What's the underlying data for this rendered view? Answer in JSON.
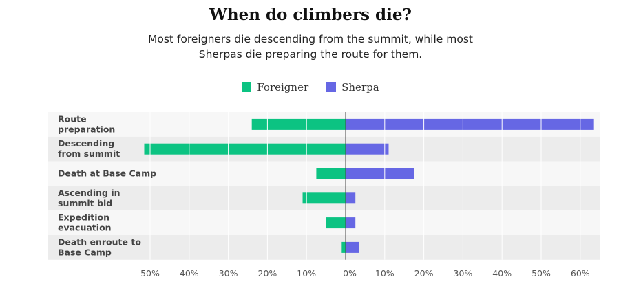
{
  "title": "When do climbers die?",
  "subtitle_line1": "Most foreigners die descending from the summit, while most",
  "subtitle_line2": "Sherpas die preparing the route for them.",
  "colors": {
    "foreigner": "#0cc382",
    "sherpa": "#6667e4",
    "row_light": "#f7f7f7",
    "row_dark": "#ececec"
  },
  "chart_data": {
    "type": "bar",
    "orientation": "horizontal-diverging",
    "title": "When do climbers die?",
    "categories": [
      [
        "Route",
        "preparation"
      ],
      [
        "Descending",
        "from summit"
      ],
      [
        "Death at Base Camp"
      ],
      [
        "Ascending in",
        "summit bid"
      ],
      [
        "Expedition",
        "evacuation"
      ],
      [
        "Death enroute to",
        "Base Camp"
      ]
    ],
    "series": [
      {
        "name": "Foreigner",
        "direction": "left",
        "values": [
          24,
          51.5,
          7.5,
          11,
          5,
          1
        ]
      },
      {
        "name": "Sherpa",
        "direction": "right",
        "values": [
          63.5,
          11,
          17.5,
          2.5,
          2.5,
          3.5
        ]
      }
    ],
    "x_ticks_left": [
      "50%",
      "40%",
      "30%",
      "20%",
      "10%"
    ],
    "x_tick_zero": "0%",
    "x_ticks_right": [
      "10%",
      "20%",
      "30%",
      "40%",
      "50%",
      "60%"
    ],
    "xlim": [
      -55,
      65
    ],
    "legend_position": "top-center",
    "grid": "vertical white lines every 10%"
  }
}
